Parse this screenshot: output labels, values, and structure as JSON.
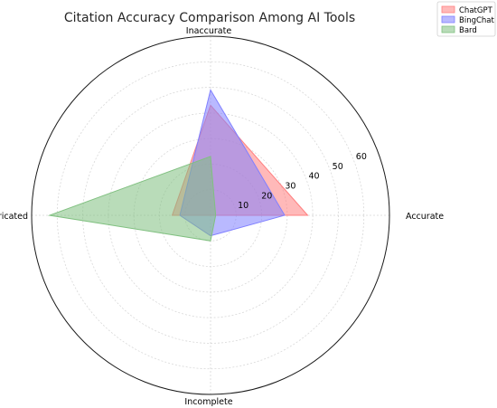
{
  "chart_data": {
    "type": "radar",
    "title": "Citation Accuracy Comparison Among AI Tools",
    "axes": [
      "Accurate",
      "Inaccurate",
      "Fabricated",
      "Incomplete"
    ],
    "r_ticks": [
      10,
      20,
      30,
      40,
      50,
      60
    ],
    "rlim": [
      0,
      70
    ],
    "grid": true,
    "legend_position": "top-right",
    "series": [
      {
        "name": "ChatGPT",
        "values": [
          38,
          43,
          15,
          0
        ],
        "color": "#ff8080"
      },
      {
        "name": "BingChat",
        "values": [
          29,
          49,
          12,
          8
        ],
        "color": "#8080ff"
      },
      {
        "name": "Bard",
        "values": [
          2,
          23,
          63,
          10
        ],
        "color": "#80c080"
      }
    ]
  }
}
